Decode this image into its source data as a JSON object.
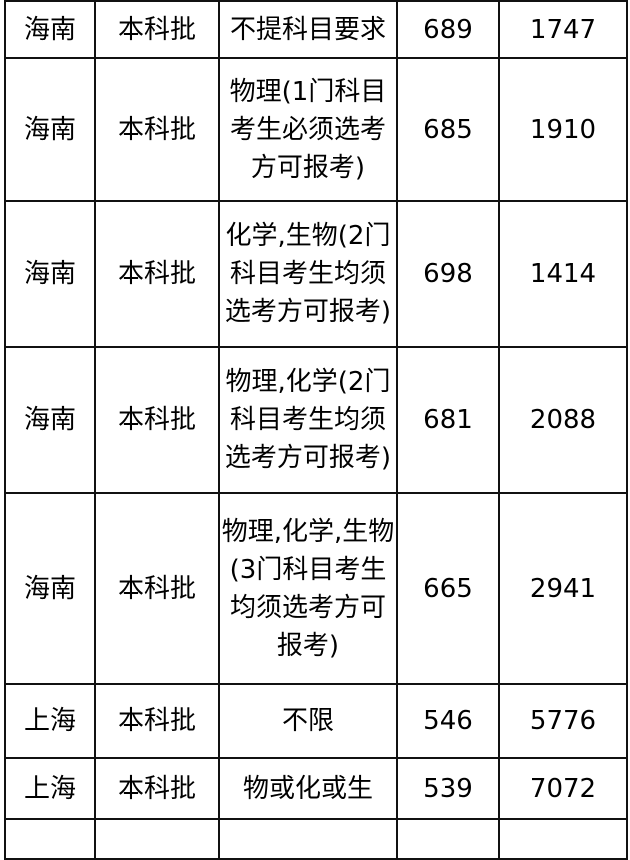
{
  "colors": {
    "border": "#111111",
    "text": "#000000",
    "background": "#ffffff"
  },
  "table": {
    "description_fields": [
      "province",
      "batch",
      "requirement",
      "score",
      "rank"
    ],
    "rows": [
      {
        "province": "海南",
        "batch": "本科批",
        "requirement": "不提科目要求",
        "score": "689",
        "rank": "1747"
      },
      {
        "province": "海南",
        "batch": "本科批",
        "requirement": "物理(1门科目考生必须选考方可报考)",
        "score": "685",
        "rank": "1910"
      },
      {
        "province": "海南",
        "batch": "本科批",
        "requirement": "化学,生物(2门科目考生均须选考方可报考)",
        "score": "698",
        "rank": "1414"
      },
      {
        "province": "海南",
        "batch": "本科批",
        "requirement": "物理,化学(2门科目考生均须选考方可报考)",
        "score": "681",
        "rank": "2088"
      },
      {
        "province": "海南",
        "batch": "本科批",
        "requirement": "物理,化学,生物(3门科目考生均须选考方可报考)",
        "score": "665",
        "rank": "2941"
      },
      {
        "province": "上海",
        "batch": "本科批",
        "requirement": "不限",
        "score": "546",
        "rank": "5776"
      },
      {
        "province": "上海",
        "batch": "本科批",
        "requirement": "物或化或生",
        "score": "539",
        "rank": "7072"
      }
    ]
  }
}
